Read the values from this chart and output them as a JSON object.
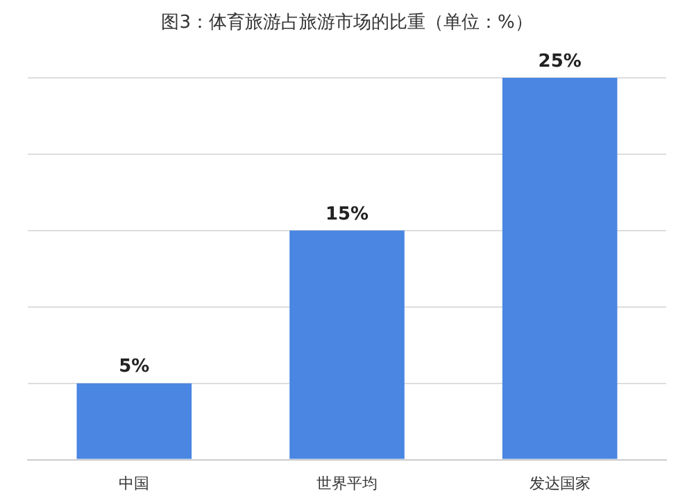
{
  "chart_data": {
    "type": "bar",
    "title": "图3：体育旅游占旅游市场的比重（单位：%）",
    "categories": [
      "中国",
      "世界平均",
      "发达国家"
    ],
    "series": [
      {
        "color": "#4a86e2",
        "values": [
          5,
          15,
          25
        ],
        "value_labels": [
          "5%",
          "15%",
          "25%"
        ]
      }
    ],
    "grid": "y",
    "tick_labels": "x",
    "legend": false
  }
}
